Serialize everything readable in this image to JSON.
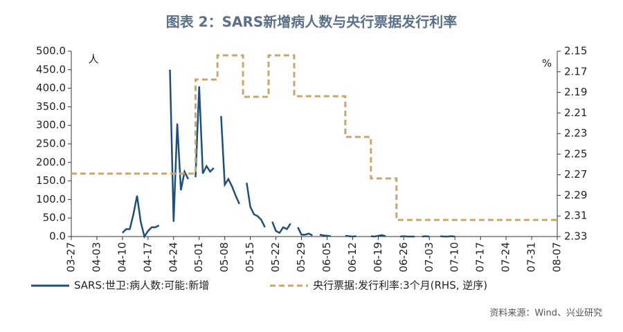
{
  "chart_data": {
    "type": "line",
    "title": "图表 2：SARS新增病人数与央行票据发行利率",
    "y_unit": "人",
    "y2_unit": "%",
    "source": "资料来源：Wind、兴业研究",
    "xlim": [
      "03-27",
      "08-07"
    ],
    "xticks": [
      "03-27",
      "04-03",
      "04-10",
      "04-17",
      "04-24",
      "05-01",
      "05-08",
      "05-15",
      "05-22",
      "05-29",
      "06-05",
      "06-12",
      "06-19",
      "06-26",
      "07-03",
      "07-10",
      "07-17",
      "07-24",
      "07-31",
      "08-07"
    ],
    "ylim": [
      0,
      500
    ],
    "yticks": [
      {
        "value": 0,
        "label": "0.0"
      },
      {
        "value": 50,
        "label": "50.0"
      },
      {
        "value": 100,
        "label": "100.0"
      },
      {
        "value": 150,
        "label": "150.0"
      },
      {
        "value": 200,
        "label": "200.0"
      },
      {
        "value": 250,
        "label": "250.0"
      },
      {
        "value": 300,
        "label": "300.0"
      },
      {
        "value": 350,
        "label": "350.0"
      },
      {
        "value": 400,
        "label": "400.0"
      },
      {
        "value": 450,
        "label": "450.0"
      },
      {
        "value": 500,
        "label": "500.0"
      }
    ],
    "y2lim": [
      2.15,
      2.33
    ],
    "y2_inverted": true,
    "y2ticks": [
      2.15,
      2.17,
      2.19,
      2.21,
      2.23,
      2.25,
      2.27,
      2.29,
      2.31,
      2.33
    ],
    "legend": "bottom",
    "series": [
      {
        "name": "SARS:世卫:病人数:可能:新增",
        "color": "#1f4e79",
        "style": "solid",
        "x": [
          "04-10",
          "04-11",
          "04-12",
          "04-13",
          "04-14",
          "04-15",
          "04-16",
          "04-17",
          "04-18",
          "04-19",
          "04-20",
          "04-22",
          "04-23",
          "04-24",
          "04-25",
          "04-26",
          "04-27",
          "04-28",
          "04-29",
          "04-30",
          "05-01",
          "05-02",
          "05-03",
          "05-04",
          "05-05",
          "05-06",
          "05-07",
          "05-08",
          "05-09",
          "05-10",
          "05-11",
          "05-12",
          "05-13",
          "05-14",
          "05-15",
          "05-16",
          "05-17",
          "05-18",
          "05-19",
          "05-20",
          "05-21",
          "05-22",
          "05-23",
          "05-24",
          "05-25",
          "05-26",
          "05-27",
          "05-28",
          "05-29",
          "05-30",
          "05-31",
          "06-01",
          "06-02",
          "06-03",
          "06-04",
          "06-05",
          "06-06",
          "06-07",
          "06-10",
          "06-11",
          "06-12",
          "06-13",
          "06-14",
          "06-17",
          "06-18",
          "06-19",
          "06-20",
          "06-21",
          "06-22",
          "06-25",
          "06-26",
          "06-27",
          "06-28",
          "06-29",
          "06-30",
          "07-01",
          "07-02",
          "07-03",
          "07-04",
          "07-06",
          "07-07",
          "07-08",
          "07-09",
          "07-10"
        ],
        "values": [
          10,
          20,
          20,
          60,
          110,
          40,
          0,
          15,
          25,
          25,
          30,
          null,
          450,
          40,
          305,
          125,
          175,
          155,
          null,
          160,
          405,
          170,
          190,
          175,
          185,
          null,
          325,
          140,
          155,
          135,
          110,
          88,
          null,
          145,
          80,
          60,
          55,
          45,
          25,
          null,
          40,
          15,
          10,
          25,
          20,
          35,
          null,
          25,
          5,
          5,
          8,
          3,
          null,
          5,
          3,
          2,
          1,
          null,
          2,
          1,
          0,
          1,
          null,
          1,
          0,
          2,
          4,
          1,
          null,
          0,
          1,
          0,
          0,
          0,
          null,
          0,
          1,
          0,
          null,
          1,
          0,
          0,
          1,
          0
        ]
      },
      {
        "name": "央行票据:发行利率:3个月(RHS, 逆序)",
        "color": "#c9a66b",
        "style": "dashed",
        "axis": "y2",
        "step": true,
        "x": [
          "03-27",
          "04-30",
          "05-06",
          "05-13",
          "05-20",
          "05-27",
          "06-10",
          "06-17",
          "06-24",
          "08-07"
        ],
        "values": [
          2.2689,
          2.1775,
          2.154,
          2.1943,
          2.154,
          2.1937,
          2.2333,
          2.2736,
          2.3139,
          2.3139
        ]
      }
    ]
  }
}
